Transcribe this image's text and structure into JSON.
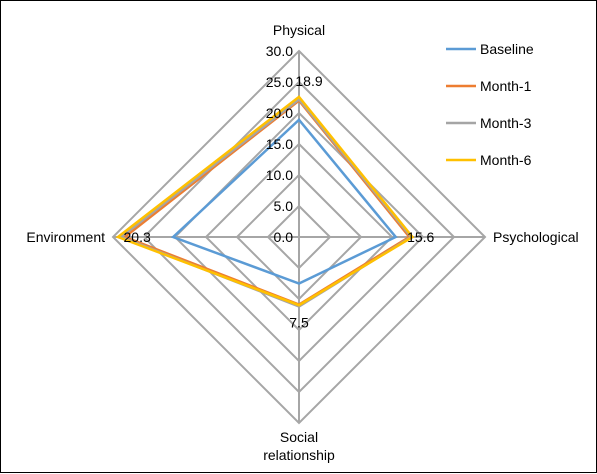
{
  "chart_data": {
    "type": "radar",
    "axes": [
      "Physical",
      "Psychological",
      "Social\nrelationship",
      "Environment"
    ],
    "rlim": [
      0,
      30
    ],
    "ticks": [
      0,
      5,
      10,
      15,
      20,
      25,
      30
    ],
    "tick_labels": [
      "0.0",
      "5.0",
      "10.0",
      "15.0",
      "20.0",
      "25.0",
      "30.0"
    ],
    "grid": true,
    "legend_position": "top-right",
    "series": [
      {
        "name": "Baseline",
        "color": "#5b9bd5",
        "values": [
          18.9,
          15.6,
          7.5,
          20.3
        ]
      },
      {
        "name": "Month-1",
        "color": "#ed7d31",
        "values": [
          22.0,
          17.8,
          10.9,
          28.1
        ]
      },
      {
        "name": "Month-3",
        "color": "#a5a5a5",
        "values": [
          22.2,
          18.1,
          11.2,
          28.7
        ]
      },
      {
        "name": "Month-6",
        "color": "#ffc000",
        "values": [
          22.6,
          18.3,
          11.0,
          29.2
        ]
      }
    ],
    "data_labels": [
      {
        "series": "Baseline",
        "axis": "Physical",
        "text": "18.9"
      },
      {
        "series": "Baseline",
        "axis": "Psychological",
        "text": "15.6"
      },
      {
        "series": "Baseline",
        "axis": "Social\nrelationship",
        "text": "7.5"
      },
      {
        "series": "Baseline",
        "axis": "Environment",
        "text": "20.3"
      }
    ]
  }
}
